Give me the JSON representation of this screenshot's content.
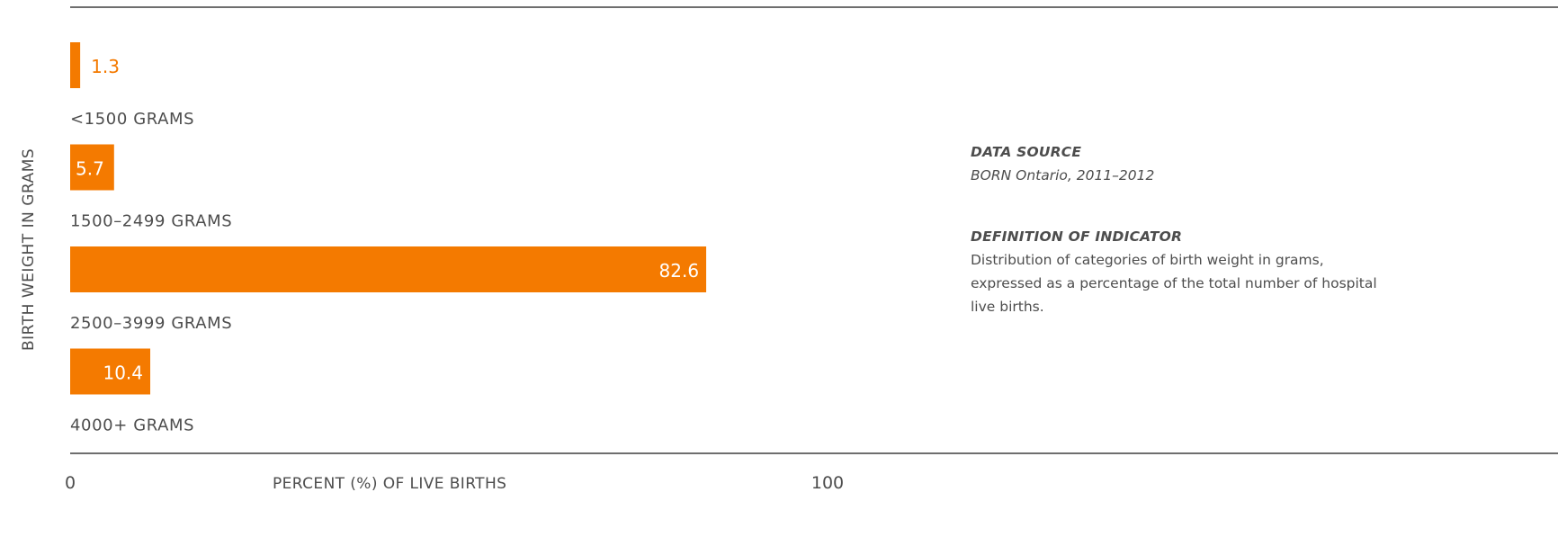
{
  "chart_data": {
    "type": "bar",
    "orientation": "horizontal",
    "categories": [
      "<1500 GRAMS",
      "1500–2499 GRAMS",
      "2500–3999 GRAMS",
      "4000+ GRAMS"
    ],
    "values": [
      1.3,
      5.7,
      82.6,
      10.4
    ],
    "data_labels": [
      "1.3",
      "5.7",
      "82.6",
      "10.4"
    ],
    "xlabel": "PERCENT (%) OF LIVE BIRTHS",
    "ylabel": "BIRTH WEIGHT IN GRAMS",
    "xlim": [
      0,
      100
    ],
    "x_tick_labels": [
      "0",
      "100"
    ],
    "grid": false,
    "bar_color": "#f47a00"
  },
  "info": {
    "source_heading": "DATA SOURCE",
    "source_text": "BORN Ontario, 2011–2012",
    "definition_heading": "DEFINITION OF INDICATOR",
    "definition_text": "Distribution of categories of birth weight in grams, expressed as a percentage of the total number of hospital live births."
  },
  "colors": {
    "accent": "#f47a00",
    "text": "#4d4d4d",
    "rule": "#6e6e6e"
  }
}
